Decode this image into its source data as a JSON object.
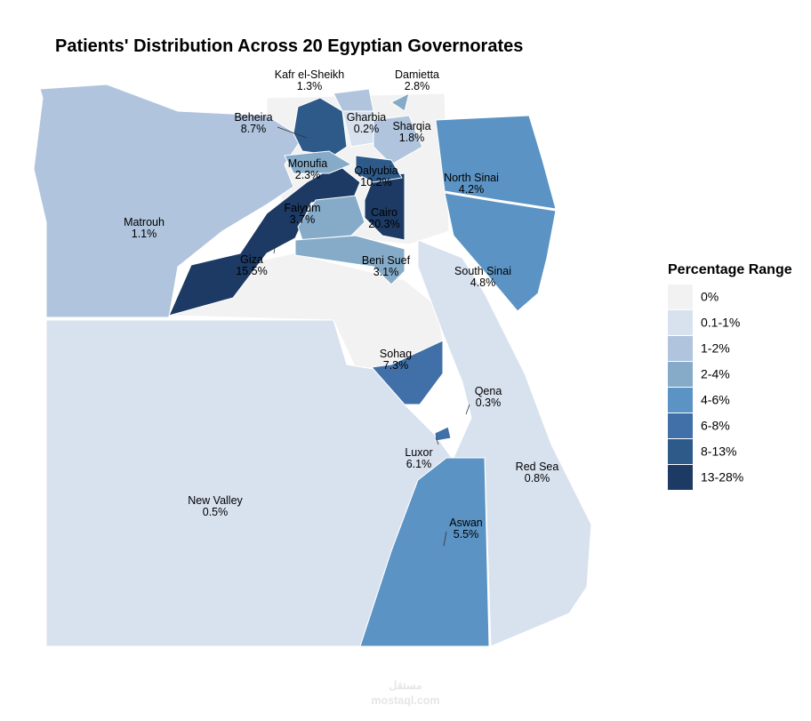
{
  "title": "Patients' Distribution Across 20 Egyptian Governorates",
  "regions": [
    {
      "name": "Kafr el-Sheikh",
      "value": "1.3%"
    },
    {
      "name": "Damietta",
      "value": "2.8%"
    },
    {
      "name": "Beheira",
      "value": "8.7%"
    },
    {
      "name": "Gharbia",
      "value": "0.2%"
    },
    {
      "name": "Sharqia",
      "value": "1.8%"
    },
    {
      "name": "Monufia",
      "value": "2.3%"
    },
    {
      "name": "Qalyubia",
      "value": "10.2%"
    },
    {
      "name": "North Sinai",
      "value": "4.2%"
    },
    {
      "name": "Faiyum",
      "value": "3.7%"
    },
    {
      "name": "Cairo",
      "value": "20.3%"
    },
    {
      "name": "Matrouh",
      "value": "1.1%"
    },
    {
      "name": "Giza",
      "value": "15.5%"
    },
    {
      "name": "Beni Suef",
      "value": "3.1%"
    },
    {
      "name": "South Sinai",
      "value": "4.8%"
    },
    {
      "name": "Sohag",
      "value": "7.3%"
    },
    {
      "name": "Qena",
      "value": "0.3%"
    },
    {
      "name": "Luxor",
      "value": "6.1%"
    },
    {
      "name": "Red Sea",
      "value": "0.8%"
    },
    {
      "name": "New Valley",
      "value": "0.5%"
    },
    {
      "name": "Aswan",
      "value": "5.5%"
    }
  ],
  "legend": {
    "title": "Percentage Range",
    "items": [
      {
        "label": "0%",
        "color": "#f2f2f2"
      },
      {
        "label": "0.1-1%",
        "color": "#d8e2ef"
      },
      {
        "label": "1-2%",
        "color": "#b0c4de"
      },
      {
        "label": "2-4%",
        "color": "#85abc8"
      },
      {
        "label": "4-6%",
        "color": "#5a93c4"
      },
      {
        "label": "6-8%",
        "color": "#4170a8"
      },
      {
        "label": "8-13%",
        "color": "#2e5a8a"
      },
      {
        "label": "13-28%",
        "color": "#1c3a63"
      }
    ]
  },
  "watermark": {
    "arabic": "مستقل",
    "latin": "mostaql.com"
  }
}
